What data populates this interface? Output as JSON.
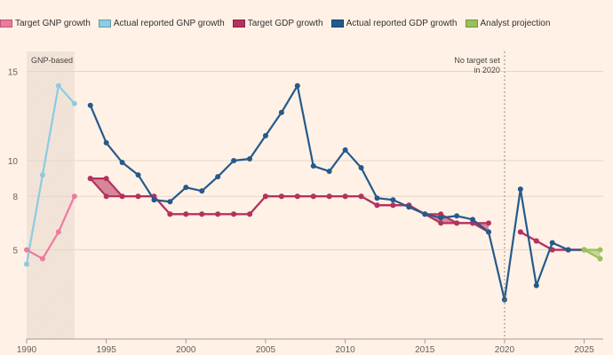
{
  "chart_data": {
    "type": "line",
    "title": "",
    "xlabel": "",
    "ylabel": "",
    "xlim": [
      1990,
      2026.2
    ],
    "ylim": [
      0,
      15
    ],
    "y_ticks": [
      5,
      8,
      10,
      15
    ],
    "x_ticks": [
      1990,
      1995,
      2000,
      2005,
      2010,
      2015,
      2020,
      2025
    ],
    "grid": "horizontal",
    "legend_position": "top",
    "legend": [
      {
        "key": "target_gnp",
        "label": "Target GNP growth",
        "color": "#ee7aa0"
      },
      {
        "key": "actual_gnp",
        "label": "Actual reported GNP growth",
        "color": "#8ccbe2"
      },
      {
        "key": "target_gdp",
        "label": "Target GDP growth",
        "color": "#b5315e"
      },
      {
        "key": "actual_gdp",
        "label": "Actual reported GDP growth",
        "color": "#245a8c"
      },
      {
        "key": "analyst",
        "label": "Analyst projection",
        "color": "#9bc05a"
      }
    ],
    "annotations": {
      "gnp_region": {
        "label": "GNP-based",
        "from": 1990,
        "to": 1993
      },
      "no_target": {
        "line1": "No target set",
        "line2": "in 2020",
        "x": 2020
      }
    },
    "series": {
      "target_gnp": {
        "x": [
          1990,
          1991,
          1992,
          1993
        ],
        "y": [
          5,
          4.5,
          6,
          8
        ]
      },
      "actual_gnp": {
        "x": [
          1990,
          1991,
          1992,
          1993
        ],
        "y": [
          4.2,
          9.2,
          14.2,
          13.2
        ]
      },
      "target_gdp": {
        "segments": [
          {
            "x": [
              1994,
              1995,
              1996,
              1997,
              1998,
              1999,
              2000,
              2001,
              2002,
              2003,
              2004,
              2005,
              2006,
              2007,
              2008,
              2009,
              2010,
              2011,
              2012,
              2013,
              2014,
              2015,
              2016,
              2017,
              2018,
              2019
            ],
            "low": [
              9,
              8,
              8,
              8,
              8,
              7,
              7,
              7,
              7,
              7,
              7,
              8,
              8,
              8,
              8,
              8,
              8,
              8,
              7.5,
              7.5,
              7.5,
              7,
              6.5,
              6.5,
              6.5,
              6
            ],
            "high": [
              9,
              9,
              8,
              8,
              8,
              7,
              7,
              7,
              7,
              7,
              7,
              8,
              8,
              8,
              8,
              8,
              8,
              8,
              7.5,
              7.5,
              7.5,
              7,
              7,
              6.5,
              6.5,
              6.5
            ]
          },
          {
            "x": [
              2021,
              2022,
              2023,
              2024,
              2025
            ],
            "low": [
              6,
              5.5,
              5,
              5,
              5
            ],
            "high": [
              6,
              5.5,
              5,
              5,
              5
            ]
          }
        ]
      },
      "actual_gdp": {
        "x": [
          1994,
          1995,
          1996,
          1997,
          1998,
          1999,
          2000,
          2001,
          2002,
          2003,
          2004,
          2005,
          2006,
          2007,
          2008,
          2009,
          2010,
          2011,
          2012,
          2013,
          2014,
          2015,
          2016,
          2017,
          2018,
          2019,
          2020,
          2021,
          2022,
          2023,
          2024,
          2025
        ],
        "y": [
          13.1,
          11.0,
          9.9,
          9.2,
          7.8,
          7.7,
          8.5,
          8.3,
          9.1,
          10.0,
          10.1,
          11.4,
          12.7,
          14.2,
          9.7,
          9.4,
          10.6,
          9.6,
          7.9,
          7.8,
          7.4,
          7.0,
          6.8,
          6.9,
          6.7,
          6.0,
          2.2,
          8.4,
          3.0,
          5.4,
          5.0,
          5.0
        ]
      },
      "analyst": {
        "x": [
          2025,
          2026
        ],
        "low": [
          5,
          4.5
        ],
        "high": [
          5,
          5
        ]
      }
    }
  }
}
